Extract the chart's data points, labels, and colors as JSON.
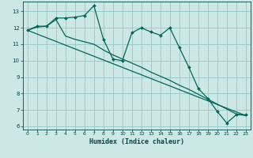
{
  "xlabel": "Humidex (Indice chaleur)",
  "bg_color": "#cce8e4",
  "grid_color": "#99cccc",
  "line_color": "#006655",
  "xlim": [
    -0.5,
    23.5
  ],
  "ylim": [
    5.8,
    13.6
  ],
  "yticks": [
    6,
    7,
    8,
    9,
    10,
    11,
    12,
    13
  ],
  "xticks": [
    0,
    1,
    2,
    3,
    4,
    5,
    6,
    7,
    8,
    9,
    10,
    11,
    12,
    13,
    14,
    15,
    16,
    17,
    18,
    19,
    20,
    21,
    22,
    23
  ],
  "line1_x": [
    0,
    1,
    2,
    3,
    4,
    5,
    6,
    7,
    8,
    9,
    10,
    11,
    12,
    13,
    14,
    15,
    16,
    17,
    18,
    19,
    20,
    21,
    22,
    23
  ],
  "line1_y": [
    11.85,
    12.1,
    12.1,
    12.6,
    12.6,
    12.65,
    12.75,
    13.35,
    11.3,
    10.1,
    10.0,
    11.7,
    12.0,
    11.75,
    11.55,
    12.0,
    10.8,
    9.6,
    8.3,
    7.7,
    6.9,
    6.2,
    6.7,
    6.7
  ],
  "line2_x": [
    0,
    1,
    2,
    3,
    4,
    5,
    6,
    7,
    8,
    9,
    10,
    11,
    12,
    13,
    14,
    15,
    16,
    17,
    18,
    19,
    20,
    21,
    22,
    23
  ],
  "line2_y": [
    11.85,
    12.05,
    12.1,
    12.5,
    11.5,
    11.3,
    11.15,
    11.0,
    10.65,
    10.35,
    10.1,
    9.85,
    9.6,
    9.3,
    9.05,
    8.8,
    8.5,
    8.25,
    7.95,
    7.65,
    7.35,
    7.05,
    6.75,
    6.65
  ],
  "line3_x": [
    0,
    23
  ],
  "line3_y": [
    11.85,
    6.65
  ]
}
